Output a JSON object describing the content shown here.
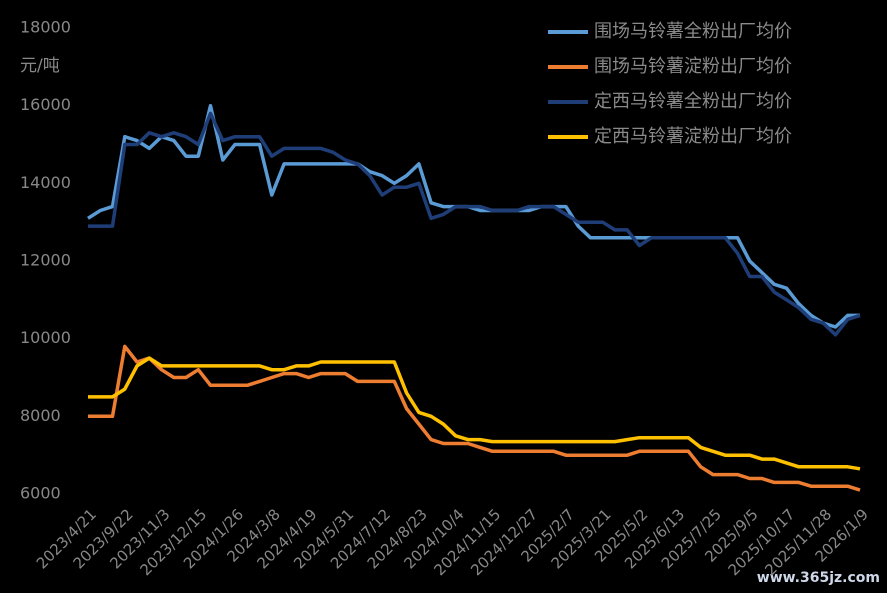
{
  "chart_data": {
    "type": "line",
    "y_label": "元/吨",
    "categories": [
      "2023/4/21",
      null,
      null,
      "2023/9/22",
      null,
      null,
      "2023/11/3",
      null,
      null,
      "2023/12/15",
      null,
      null,
      "2024/1/26",
      null,
      null,
      "2024/3/8",
      null,
      null,
      "2024/4/19",
      null,
      null,
      "2024/5/31",
      null,
      null,
      "2024/7/12",
      null,
      null,
      "2024/8/23",
      null,
      null,
      "2024/10/4",
      null,
      null,
      "2024/11/15",
      null,
      null,
      "2024/12/27",
      null,
      null,
      "2025/2/7",
      null,
      null,
      "2025/3/21",
      null,
      null,
      "2025/5/2",
      null,
      null,
      "2025/6/13",
      null,
      null,
      "2025/7/25",
      null,
      null,
      "2025/9/5",
      null,
      null,
      "2025/10/17",
      null,
      null,
      "2025/11/28",
      null,
      null,
      "2026/1/9"
    ],
    "series": [
      {
        "name": "围场马铃薯全粉出厂均价",
        "color": "#5b9bd5",
        "values": [
          13100,
          13300,
          13400,
          15200,
          15100,
          14900,
          15200,
          15100,
          14700,
          14700,
          16000,
          14600,
          15000,
          15000,
          15000,
          13700,
          14500,
          14500,
          14500,
          14500,
          14500,
          14500,
          14500,
          14300,
          14200,
          14000,
          14200,
          14500,
          13500,
          13400,
          13400,
          13400,
          13300,
          13300,
          13300,
          13300,
          13300,
          13400,
          13400,
          13400,
          12900,
          12600,
          12600,
          12600,
          12600,
          12600,
          12600,
          12600,
          12600,
          12600,
          12600,
          12600,
          12600,
          12600,
          12000,
          11700,
          11400,
          11300,
          10900,
          10600,
          10400,
          10300,
          10600,
          10600
        ]
      },
      {
        "name": "围场马铃薯淀粉出厂均价",
        "color": "#ed7d31",
        "values": [
          8000,
          8000,
          8000,
          9800,
          9400,
          9500,
          9200,
          9000,
          9000,
          9200,
          8800,
          8800,
          8800,
          8800,
          8900,
          9000,
          9100,
          9100,
          9000,
          9100,
          9100,
          9100,
          8900,
          8900,
          8900,
          8900,
          8200,
          7800,
          7400,
          7300,
          7300,
          7300,
          7200,
          7100,
          7100,
          7100,
          7100,
          7100,
          7100,
          7000,
          7000,
          7000,
          7000,
          7000,
          7000,
          7100,
          7100,
          7100,
          7100,
          7100,
          6700,
          6500,
          6500,
          6500,
          6400,
          6400,
          6300,
          6300,
          6300,
          6200,
          6200,
          6200,
          6200,
          6100
        ]
      },
      {
        "name": "定西马铃薯全粉出厂均价",
        "color": "#1f3e78",
        "values": [
          12900,
          12900,
          12900,
          15000,
          15000,
          15300,
          15200,
          15300,
          15200,
          15000,
          15800,
          15100,
          15200,
          15200,
          15200,
          14700,
          14900,
          14900,
          14900,
          14900,
          14800,
          14600,
          14500,
          14200,
          13700,
          13900,
          13900,
          14000,
          13100,
          13200,
          13400,
          13400,
          13400,
          13300,
          13300,
          13300,
          13400,
          13400,
          13400,
          13200,
          13000,
          13000,
          13000,
          12800,
          12800,
          12400,
          12600,
          12600,
          12600,
          12600,
          12600,
          12600,
          12600,
          12200,
          11600,
          11600,
          11200,
          11000,
          10800,
          10500,
          10400,
          10100,
          10500,
          10600
        ]
      },
      {
        "name": "定西马铃薯淀粉出厂均价",
        "color": "#ffc000",
        "values": [
          8500,
          8500,
          8500,
          8700,
          9300,
          9500,
          9300,
          9300,
          9300,
          9300,
          9300,
          9300,
          9300,
          9300,
          9300,
          9200,
          9200,
          9300,
          9300,
          9400,
          9400,
          9400,
          9400,
          9400,
          9400,
          9400,
          8600,
          8100,
          8000,
          7800,
          7500,
          7400,
          7400,
          7350,
          7350,
          7350,
          7350,
          7350,
          7350,
          7350,
          7350,
          7350,
          7350,
          7350,
          7400,
          7450,
          7450,
          7450,
          7450,
          7450,
          7200,
          7100,
          7000,
          7000,
          7000,
          6900,
          6900,
          6800,
          6700,
          6700,
          6700,
          6700,
          6700,
          6650
        ]
      }
    ],
    "ylim": [
      6000,
      18000
    ],
    "yticks": [
      6000,
      8000,
      10000,
      12000,
      14000,
      16000,
      18000
    ],
    "legend": "top-right",
    "watermark": "www.365jz.com"
  }
}
